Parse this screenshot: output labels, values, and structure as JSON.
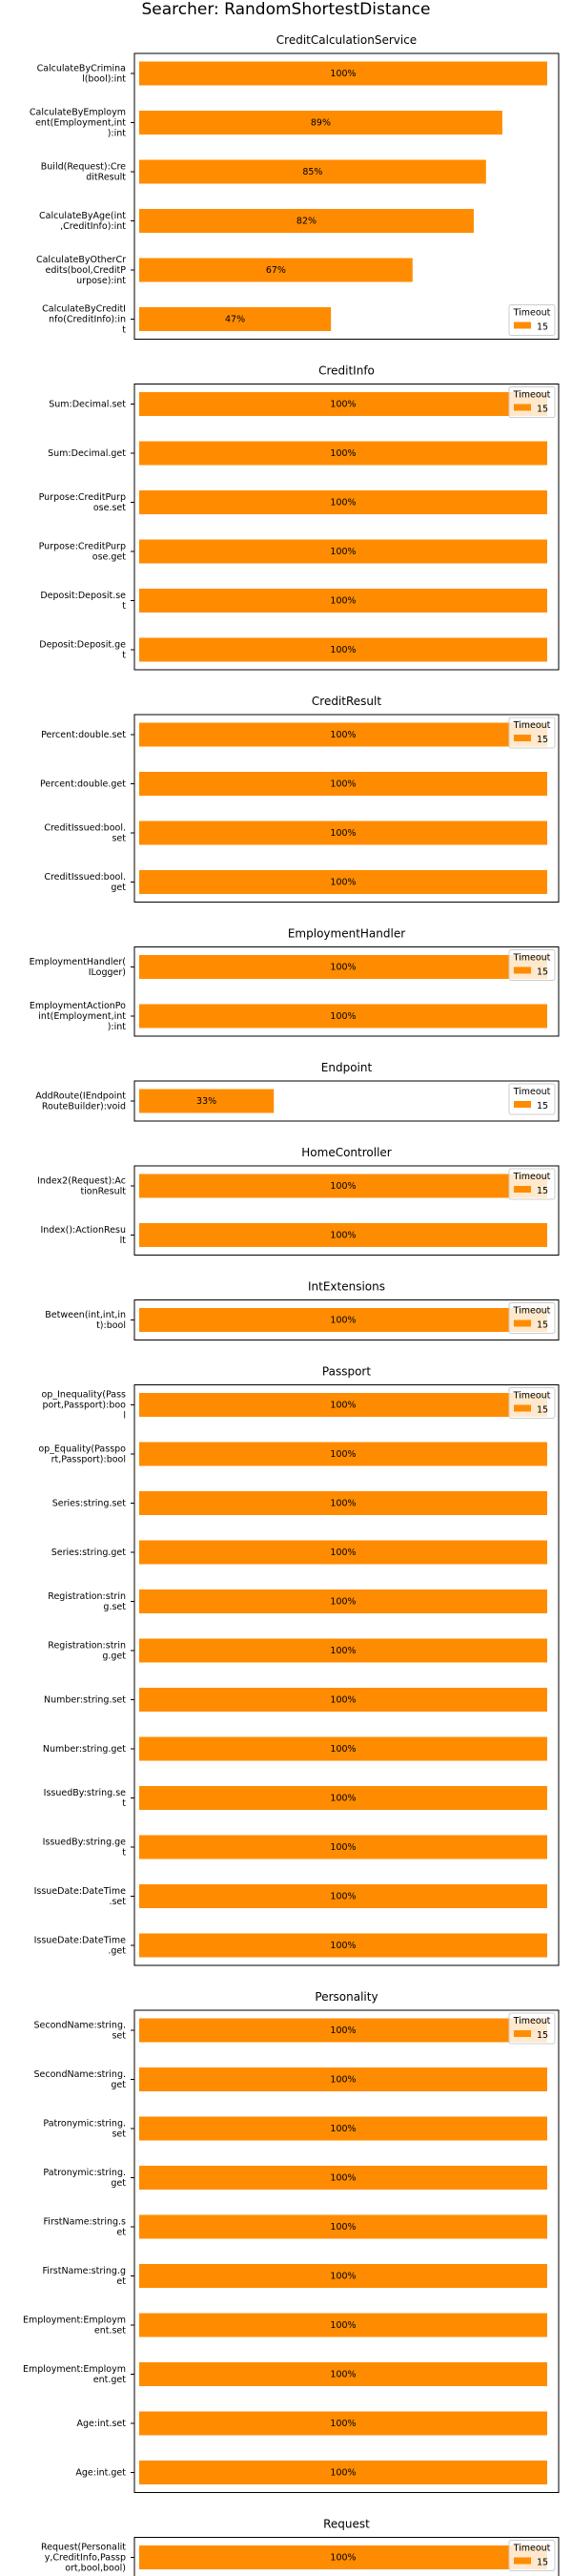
{
  "chart_data": {
    "type": "bar",
    "orientation": "horizontal",
    "title": "Searcher: RandomShortestDistance",
    "xlim": [
      0,
      100
    ],
    "xticks": [
      "0",
      "20",
      "40",
      "60",
      "80",
      "100"
    ],
    "bar_color": "#ff8c00",
    "legend": {
      "title": "Timeout",
      "label": "15",
      "position": "top-right"
    },
    "panels": [
      {
        "title": "CreditCalculationService",
        "bars": [
          {
            "label": "CalculateByCriminal(bool):int",
            "value": 100,
            "text": "100%"
          },
          {
            "label": "CalculateByEmployment(Employment,int):int",
            "value": 89,
            "text": "89%"
          },
          {
            "label": "Build(Request):CreditResult",
            "value": 85,
            "text": "85%"
          },
          {
            "label": "CalculateByAge(int,CreditInfo):int",
            "value": 82,
            "text": "82%"
          },
          {
            "label": "CalculateByOtherCredits(bool,CreditPurpose):int",
            "value": 67,
            "text": "67%"
          },
          {
            "label": "CalculateByCreditInfo(CreditInfo):int",
            "value": 47,
            "text": "47%"
          }
        ]
      },
      {
        "title": "CreditInfo",
        "bars": [
          {
            "label": "Sum:Decimal.set",
            "value": 100,
            "text": "100%"
          },
          {
            "label": "Sum:Decimal.get",
            "value": 100,
            "text": "100%"
          },
          {
            "label": "Purpose:CreditPurpose.set",
            "value": 100,
            "text": "100%"
          },
          {
            "label": "Purpose:CreditPurpose.get",
            "value": 100,
            "text": "100%"
          },
          {
            "label": "Deposit:Deposit.set",
            "value": 100,
            "text": "100%"
          },
          {
            "label": "Deposit:Deposit.get",
            "value": 100,
            "text": "100%"
          }
        ]
      },
      {
        "title": "CreditResult",
        "bars": [
          {
            "label": "Percent:double.set",
            "value": 100,
            "text": "100%"
          },
          {
            "label": "Percent:double.get",
            "value": 100,
            "text": "100%"
          },
          {
            "label": "CreditIssued:bool.set",
            "value": 100,
            "text": "100%"
          },
          {
            "label": "CreditIssued:bool.get",
            "value": 100,
            "text": "100%"
          }
        ]
      },
      {
        "title": "EmploymentHandler",
        "bars": [
          {
            "label": "EmploymentHandler(ILogger)",
            "value": 100,
            "text": "100%"
          },
          {
            "label": "EmploymentActionPoint(Employment,int):int",
            "value": 100,
            "text": "100%"
          }
        ]
      },
      {
        "title": "Endpoint",
        "bars": [
          {
            "label": "AddRoute(IEndpointRouteBuilder):void",
            "value": 33,
            "text": "33%"
          }
        ]
      },
      {
        "title": "HomeController",
        "bars": [
          {
            "label": "Index2(Request):ActionResult",
            "value": 100,
            "text": "100%"
          },
          {
            "label": "Index():ActionResult",
            "value": 100,
            "text": "100%"
          }
        ]
      },
      {
        "title": "IntExtensions",
        "bars": [
          {
            "label": "Between(int,int,int):bool",
            "value": 100,
            "text": "100%"
          }
        ]
      },
      {
        "title": "Passport",
        "bars": [
          {
            "label": "op_Inequality(Passport,Passport):bool",
            "value": 100,
            "text": "100%"
          },
          {
            "label": "op_Equality(Passport,Passport):bool",
            "value": 100,
            "text": "100%"
          },
          {
            "label": "Series:string.set",
            "value": 100,
            "text": "100%"
          },
          {
            "label": "Series:string.get",
            "value": 100,
            "text": "100%"
          },
          {
            "label": "Registration:string.set",
            "value": 100,
            "text": "100%"
          },
          {
            "label": "Registration:string.get",
            "value": 100,
            "text": "100%"
          },
          {
            "label": "Number:string.set",
            "value": 100,
            "text": "100%"
          },
          {
            "label": "Number:string.get",
            "value": 100,
            "text": "100%"
          },
          {
            "label": "IssuedBy:string.set",
            "value": 100,
            "text": "100%"
          },
          {
            "label": "IssuedBy:string.get",
            "value": 100,
            "text": "100%"
          },
          {
            "label": "IssueDate:DateTime.set",
            "value": 100,
            "text": "100%"
          },
          {
            "label": "IssueDate:DateTime.get",
            "value": 100,
            "text": "100%"
          }
        ]
      },
      {
        "title": "Personality",
        "bars": [
          {
            "label": "SecondName:string.set",
            "value": 100,
            "text": "100%"
          },
          {
            "label": "SecondName:string.get",
            "value": 100,
            "text": "100%"
          },
          {
            "label": "Patronymic:string.set",
            "value": 100,
            "text": "100%"
          },
          {
            "label": "Patronymic:string.get",
            "value": 100,
            "text": "100%"
          },
          {
            "label": "FirstName:string.set",
            "value": 100,
            "text": "100%"
          },
          {
            "label": "FirstName:string.get",
            "value": 100,
            "text": "100%"
          },
          {
            "label": "Employment:Employment.set",
            "value": 100,
            "text": "100%"
          },
          {
            "label": "Employment:Employment.get",
            "value": 100,
            "text": "100%"
          },
          {
            "label": "Age:int.set",
            "value": 100,
            "text": "100%"
          },
          {
            "label": "Age:int.get",
            "value": 100,
            "text": "100%"
          }
        ]
      },
      {
        "title": "Request",
        "bars": [
          {
            "label": "Request(Personality,CreditInfo,Passport,bool,bool)",
            "value": 100,
            "text": "100%"
          }
        ]
      }
    ]
  }
}
